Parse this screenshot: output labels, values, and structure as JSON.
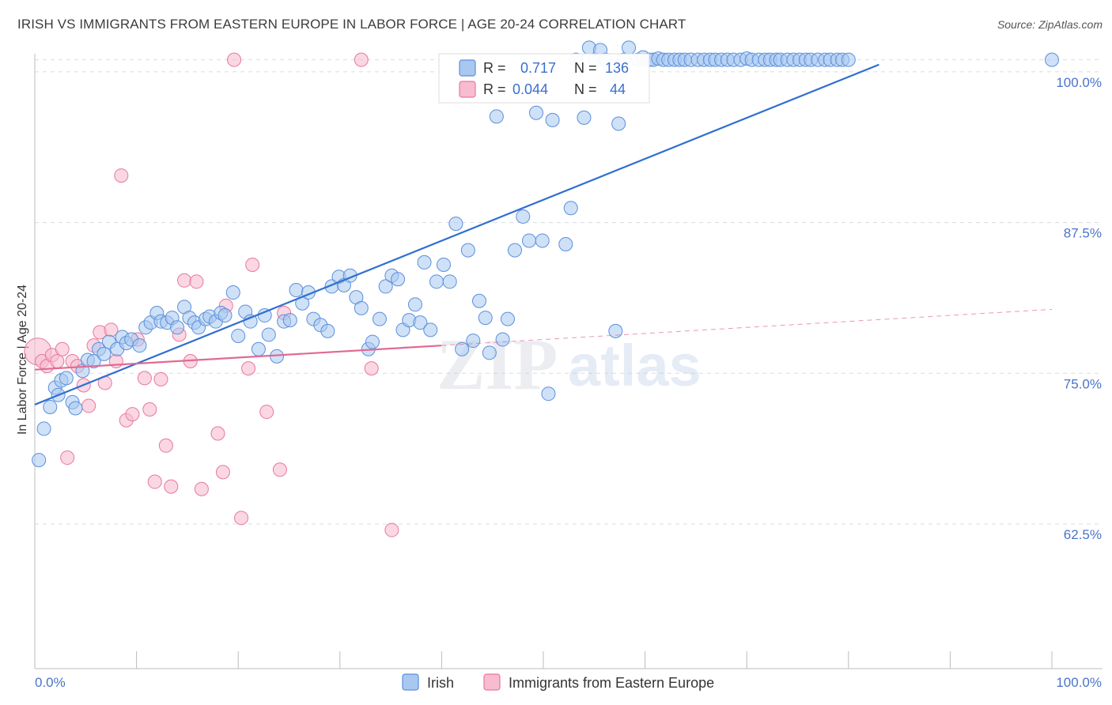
{
  "header": {
    "title": "IRISH VS IMMIGRANTS FROM EASTERN EUROPE IN LABOR FORCE | AGE 20-24 CORRELATION CHART",
    "source": "Source: ZipAtlas.com"
  },
  "watermark": {
    "zip": "ZIP",
    "atlas": "atlas"
  },
  "colors": {
    "irish_fill": "#a8c8f0",
    "irish_stroke": "#5b8fdc",
    "irish_line": "#2f6fd0",
    "east_fill": "#f7bcd0",
    "east_stroke": "#e8789c",
    "east_line": "#e06a95",
    "grid": "#d7dbe3",
    "tick_text": "#4a74c9"
  },
  "chart_data": {
    "type": "scatter",
    "title": "IRISH VS IMMIGRANTS FROM EASTERN EUROPE IN LABOR FORCE | AGE 20-24 CORRELATION CHART",
    "xlabel": "",
    "ylabel": "In Labor Force | Age 20-24",
    "xlim": [
      0,
      100
    ],
    "ylim": [
      50.5,
      101.5
    ],
    "x_tick_labels": [
      "0.0%",
      "100.0%"
    ],
    "y_ticks": [
      62.5,
      75.0,
      87.5,
      100.0
    ],
    "y_tick_labels": [
      "62.5%",
      "75.0%",
      "87.5%",
      "100.0%"
    ],
    "legend": {
      "r_label": "R =",
      "n_label": "N =",
      "entries": [
        {
          "series": "Irish",
          "r": "0.717",
          "n": "136"
        },
        {
          "series": "Immigrants from Eastern Europe",
          "r": "0.044",
          "n": "44"
        }
      ]
    },
    "bottom_legend": [
      "Irish",
      "Immigrants from Eastern Europe"
    ],
    "series": [
      {
        "name": "Irish",
        "trend": {
          "x": [
            0,
            83
          ],
          "y": [
            72.4,
            100.6
          ]
        },
        "points": [
          [
            0.4,
            67.8
          ],
          [
            0.9,
            70.4
          ],
          [
            1.5,
            72.2
          ],
          [
            2.0,
            73.8
          ],
          [
            2.3,
            73.2
          ],
          [
            2.6,
            74.4
          ],
          [
            3.1,
            74.6
          ],
          [
            3.7,
            72.6
          ],
          [
            4.0,
            72.1
          ],
          [
            4.7,
            75.2
          ],
          [
            5.2,
            76.1
          ],
          [
            5.8,
            76.0
          ],
          [
            6.3,
            77.0
          ],
          [
            6.8,
            76.6
          ],
          [
            7.3,
            77.6
          ],
          [
            8.1,
            77.0
          ],
          [
            8.6,
            78.0
          ],
          [
            9.0,
            77.5
          ],
          [
            9.5,
            77.8
          ],
          [
            10.3,
            77.3
          ],
          [
            10.9,
            78.8
          ],
          [
            11.4,
            79.2
          ],
          [
            12.0,
            80.0
          ],
          [
            12.4,
            79.3
          ],
          [
            13.0,
            79.2
          ],
          [
            13.5,
            79.6
          ],
          [
            14.0,
            78.8
          ],
          [
            14.7,
            80.5
          ],
          [
            15.2,
            79.6
          ],
          [
            15.7,
            79.2
          ],
          [
            16.1,
            78.8
          ],
          [
            16.8,
            79.5
          ],
          [
            17.2,
            79.7
          ],
          [
            17.8,
            79.3
          ],
          [
            18.3,
            80.0
          ],
          [
            18.7,
            79.8
          ],
          [
            19.5,
            81.7
          ],
          [
            20.0,
            78.1
          ],
          [
            20.7,
            80.1
          ],
          [
            21.2,
            79.3
          ],
          [
            22.0,
            77.0
          ],
          [
            22.6,
            79.8
          ],
          [
            23.0,
            78.2
          ],
          [
            23.8,
            76.4
          ],
          [
            24.5,
            79.3
          ],
          [
            25.1,
            79.4
          ],
          [
            25.7,
            81.9
          ],
          [
            26.3,
            80.8
          ],
          [
            26.9,
            81.7
          ],
          [
            27.4,
            79.5
          ],
          [
            28.1,
            79.0
          ],
          [
            28.8,
            78.5
          ],
          [
            29.2,
            82.2
          ],
          [
            29.9,
            83.0
          ],
          [
            30.4,
            82.3
          ],
          [
            31.0,
            83.1
          ],
          [
            31.6,
            81.3
          ],
          [
            32.1,
            80.4
          ],
          [
            32.8,
            77.0
          ],
          [
            33.2,
            77.6
          ],
          [
            33.9,
            79.5
          ],
          [
            34.5,
            82.2
          ],
          [
            35.1,
            83.1
          ],
          [
            35.7,
            82.8
          ],
          [
            36.2,
            78.6
          ],
          [
            36.8,
            79.4
          ],
          [
            37.4,
            80.7
          ],
          [
            37.9,
            79.2
          ],
          [
            38.3,
            84.2
          ],
          [
            38.9,
            78.6
          ],
          [
            39.5,
            82.6
          ],
          [
            40.2,
            84.0
          ],
          [
            40.8,
            82.6
          ],
          [
            41.4,
            87.4
          ],
          [
            42.0,
            77.0
          ],
          [
            42.6,
            85.2
          ],
          [
            43.1,
            77.7
          ],
          [
            43.7,
            81.0
          ],
          [
            44.3,
            79.6
          ],
          [
            44.7,
            76.7
          ],
          [
            45.4,
            96.3
          ],
          [
            46.0,
            77.8
          ],
          [
            46.5,
            79.5
          ],
          [
            47.2,
            85.2
          ],
          [
            48.0,
            88.0
          ],
          [
            48.6,
            86.0
          ],
          [
            49.3,
            96.6
          ],
          [
            49.9,
            86.0
          ],
          [
            50.5,
            73.3
          ],
          [
            50.9,
            96.0
          ],
          [
            52.2,
            85.7
          ],
          [
            52.7,
            88.7
          ],
          [
            53.2,
            101.0
          ],
          [
            54.0,
            96.2
          ],
          [
            54.5,
            102.0
          ],
          [
            55.1,
            101.0
          ],
          [
            55.6,
            101.8
          ],
          [
            56.1,
            101.0
          ],
          [
            57.1,
            78.5
          ],
          [
            57.4,
            95.7
          ],
          [
            57.9,
            101.0
          ],
          [
            58.4,
            102.0
          ],
          [
            59.3,
            101.0
          ],
          [
            59.8,
            101.2
          ],
          [
            60.4,
            101.0
          ],
          [
            60.8,
            101.0
          ],
          [
            61.3,
            101.1
          ],
          [
            61.8,
            101.0
          ],
          [
            62.3,
            101.0
          ],
          [
            62.9,
            101.0
          ],
          [
            63.4,
            101.0
          ],
          [
            63.9,
            101.0
          ],
          [
            64.5,
            101.0
          ],
          [
            65.2,
            101.0
          ],
          [
            65.8,
            101.0
          ],
          [
            66.4,
            101.0
          ],
          [
            66.9,
            101.0
          ],
          [
            67.5,
            101.0
          ],
          [
            68.1,
            101.0
          ],
          [
            68.7,
            101.0
          ],
          [
            69.4,
            101.0
          ],
          [
            70.0,
            101.1
          ],
          [
            70.5,
            101.0
          ],
          [
            71.2,
            101.0
          ],
          [
            71.8,
            101.0
          ],
          [
            72.3,
            101.0
          ],
          [
            72.9,
            101.0
          ],
          [
            73.3,
            101.0
          ],
          [
            74.0,
            101.0
          ],
          [
            74.6,
            101.0
          ],
          [
            75.2,
            101.0
          ],
          [
            75.8,
            101.0
          ],
          [
            76.3,
            101.0
          ],
          [
            77.0,
            101.0
          ],
          [
            77.7,
            101.0
          ],
          [
            78.2,
            101.0
          ],
          [
            78.9,
            101.0
          ],
          [
            79.4,
            101.0
          ],
          [
            80.0,
            101.0
          ],
          [
            100.0,
            101.0
          ]
        ]
      },
      {
        "name": "Immigrants from Eastern Europe",
        "trend": {
          "x": [
            0,
            40
          ],
          "y": [
            75.3,
            77.3
          ]
        },
        "trend_ext": {
          "x": [
            40,
            100
          ],
          "y": [
            77.3,
            80.3
          ]
        },
        "points": [
          [
            0.3,
            76.8
          ],
          [
            0.7,
            76.0
          ],
          [
            1.2,
            75.6
          ],
          [
            1.7,
            76.5
          ],
          [
            2.2,
            76.0
          ],
          [
            2.7,
            77.0
          ],
          [
            3.2,
            68.0
          ],
          [
            3.7,
            76.0
          ],
          [
            4.2,
            75.6
          ],
          [
            4.8,
            74.0
          ],
          [
            5.3,
            72.3
          ],
          [
            5.8,
            77.3
          ],
          [
            6.4,
            78.4
          ],
          [
            6.9,
            74.2
          ],
          [
            7.5,
            78.6
          ],
          [
            8.0,
            76.0
          ],
          [
            8.5,
            91.4
          ],
          [
            9.0,
            71.1
          ],
          [
            9.6,
            71.6
          ],
          [
            10.1,
            77.8
          ],
          [
            10.8,
            74.6
          ],
          [
            11.3,
            72.0
          ],
          [
            11.8,
            66.0
          ],
          [
            12.4,
            74.5
          ],
          [
            12.9,
            69.0
          ],
          [
            13.4,
            65.6
          ],
          [
            14.2,
            78.2
          ],
          [
            14.7,
            82.7
          ],
          [
            15.3,
            76.0
          ],
          [
            15.9,
            82.6
          ],
          [
            16.4,
            65.4
          ],
          [
            18.0,
            70.0
          ],
          [
            18.5,
            66.8
          ],
          [
            18.8,
            80.6
          ],
          [
            19.6,
            101.0
          ],
          [
            20.3,
            63.0
          ],
          [
            21.0,
            75.4
          ],
          [
            21.4,
            84.0
          ],
          [
            22.8,
            71.8
          ],
          [
            24.1,
            67.0
          ],
          [
            24.5,
            80.0
          ],
          [
            32.1,
            101.0
          ],
          [
            33.1,
            75.4
          ],
          [
            35.1,
            62.0
          ]
        ]
      }
    ]
  }
}
